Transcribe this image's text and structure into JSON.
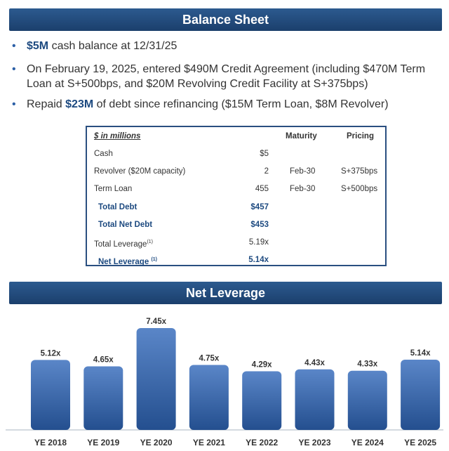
{
  "balance_sheet": {
    "title": "Balance Sheet",
    "bullets": [
      {
        "bold": "$5M",
        "text": " cash balance at 12/31/25"
      },
      {
        "bold": "",
        "text": "On February 19, 2025, entered $490M Credit Agreement (including $470M Term Loan at S+500bps, and $20M Revolving Credit Facility at S+375bps)"
      },
      {
        "pre": "Repaid ",
        "bold": "$23M",
        "text": " of debt since refinancing ($15M Term Loan, $8M Revolver)"
      }
    ]
  },
  "debt_table": {
    "header": {
      "label": "$ in millions",
      "maturity": "Maturity",
      "pricing": "Pricing"
    },
    "rows": [
      {
        "label": "Cash",
        "value": "$5",
        "maturity": "",
        "pricing": ""
      },
      {
        "label": "Revolver ($20M capacity)",
        "value": "2",
        "maturity": "Feb-30",
        "pricing": "S+375bps"
      },
      {
        "label": "Term Loan",
        "value": "455",
        "maturity": "Feb-30",
        "pricing": "S+500bps"
      },
      {
        "label": "Total Debt",
        "value": "$457",
        "maturity": "",
        "pricing": ""
      },
      {
        "label": "Total Net Debt",
        "value": "$453",
        "maturity": "",
        "pricing": ""
      },
      {
        "label": "Total Leverage",
        "sup": "(1)",
        "value": "5.19x",
        "maturity": "",
        "pricing": ""
      },
      {
        "label": "Net Leverage ",
        "sup": "(1)",
        "value": "5.14x",
        "maturity": "",
        "pricing": ""
      }
    ]
  },
  "chart_data": {
    "type": "bar",
    "title": "Net Leverage",
    "categories": [
      "YE 2018",
      "YE 2019",
      "YE 2020",
      "YE 2021",
      "YE 2022",
      "YE 2023",
      "YE 2024",
      "YE 2025"
    ],
    "values": [
      5.12,
      4.65,
      7.45,
      4.75,
      4.29,
      4.43,
      4.33,
      5.14
    ],
    "labels": [
      "5.12x",
      "4.65x",
      "7.45x",
      "4.75x",
      "4.29x",
      "4.43x",
      "4.33x",
      "5.14x"
    ],
    "colors": {
      "bar_top": "#4f7cc0",
      "bar_bottom": "#244f8f",
      "header": "#1f4775"
    }
  }
}
